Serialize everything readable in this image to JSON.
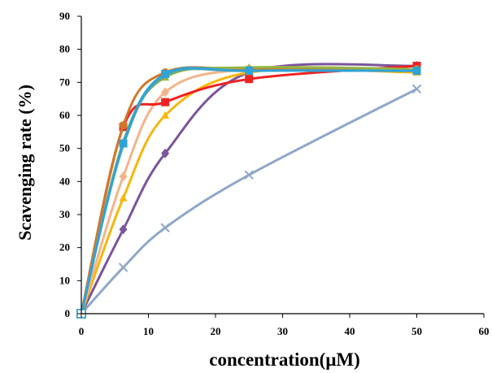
{
  "chart_data": {
    "type": "line",
    "title": "",
    "xlabel": "concentration(μM)",
    "ylabel": "Scavenging rate (%)",
    "xlim": [
      0,
      60
    ],
    "ylim": [
      0,
      90
    ],
    "xticks": [
      0,
      10,
      20,
      30,
      40,
      50,
      60
    ],
    "yticks": [
      0,
      10,
      20,
      30,
      40,
      50,
      60,
      70,
      80,
      90
    ],
    "grid": false,
    "legend": "none",
    "series": [
      {
        "color": "#8fa8c8",
        "marker": "x",
        "x": [
          0,
          6.25,
          12.5,
          25,
          50
        ],
        "y": [
          0,
          14,
          26,
          42,
          68
        ]
      },
      {
        "color": "#7b559b",
        "marker": "diamond",
        "x": [
          0,
          6.25,
          12.5,
          25,
          50
        ],
        "y": [
          0,
          25.5,
          48.5,
          73,
          75
        ]
      },
      {
        "color": "#f5b70a",
        "marker": "triangle",
        "x": [
          0,
          6.25,
          12.5,
          25,
          50
        ],
        "y": [
          0,
          35,
          60,
          73,
          73
        ]
      },
      {
        "color": "#f4b48a",
        "marker": "diamond",
        "x": [
          0,
          6.25,
          12.5,
          25,
          50
        ],
        "y": [
          0,
          41.5,
          67,
          74,
          74
        ]
      },
      {
        "color": "#ee2222",
        "marker": "square",
        "x": [
          0,
          6.25,
          12.5,
          25,
          50
        ],
        "y": [
          0,
          56.5,
          64,
          71,
          75
        ]
      },
      {
        "color": "#d07828",
        "marker": "circle",
        "x": [
          0,
          6.25,
          12.5,
          25,
          50
        ],
        "y": [
          0,
          57,
          73,
          74,
          74
        ]
      },
      {
        "color": "#95b545",
        "marker": "triangle",
        "x": [
          0,
          6.25,
          12.5,
          25,
          50
        ],
        "y": [
          0,
          52,
          71.5,
          74.5,
          74
        ]
      },
      {
        "color": "#4fa8a0",
        "marker": "none",
        "x": [
          0,
          6.25,
          12.5,
          25,
          50
        ],
        "y": [
          0,
          51,
          72,
          73.5,
          73.5
        ]
      },
      {
        "color": "#2fa3d8",
        "marker": "square",
        "x": [
          0,
          6.25,
          12.5,
          25,
          50
        ],
        "y": [
          0,
          51.5,
          72.5,
          73.5,
          73.5
        ]
      }
    ]
  }
}
